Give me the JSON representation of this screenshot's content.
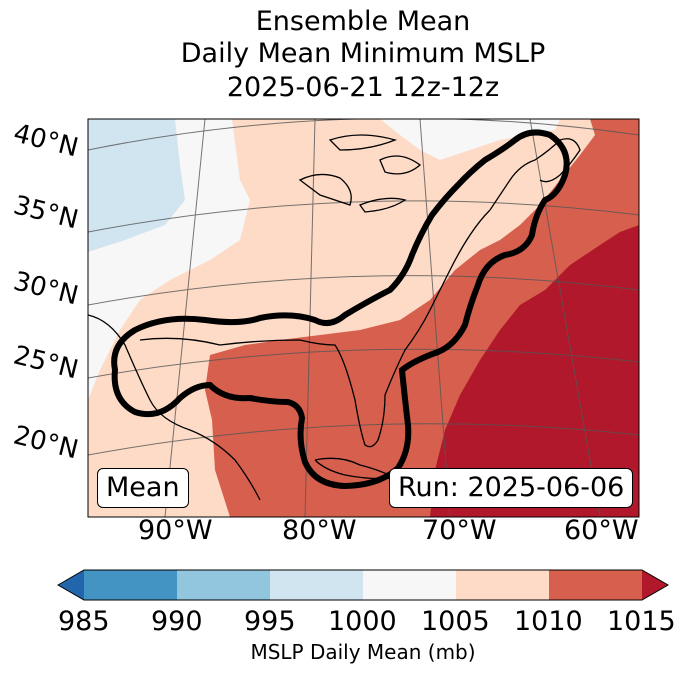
{
  "title": {
    "line1": "Ensemble Mean",
    "line2": "Daily Mean Minimum MSLP",
    "line3": "2025-06-21 12z-12z"
  },
  "map": {
    "lat_labels": [
      "40°N",
      "35°N",
      "30°N",
      "25°N",
      "20°N"
    ],
    "lon_labels": [
      "90°W",
      "80°W",
      "70°W",
      "60°W"
    ],
    "mean_box": "Mean",
    "run_box": "Run: 2025-06-06",
    "contour_color": "#000000",
    "coast_color": "#000000"
  },
  "colorbar": {
    "ticks": [
      "985",
      "990",
      "995",
      "1000",
      "1005",
      "1010",
      "1015"
    ],
    "colors": [
      "#2166ac",
      "#4393c3",
      "#92c5de",
      "#d1e5f0",
      "#f7f7f7",
      "#fddbc7",
      "#d6604d",
      "#b2182b"
    ],
    "label": "MSLP Daily Mean (mb)"
  }
}
